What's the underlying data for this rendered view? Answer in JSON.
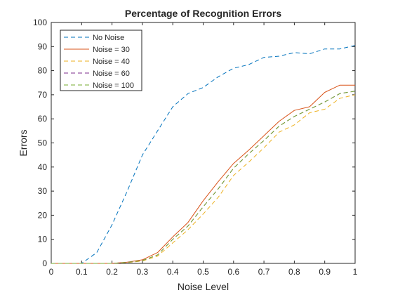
{
  "chart_data": {
    "type": "line",
    "title": "Percentage of Recognition Errors",
    "xlabel": "Noise Level",
    "ylabel": "Errors",
    "xlim": [
      0,
      1
    ],
    "ylim": [
      0,
      100
    ],
    "grid": false,
    "legend_position": "top-left",
    "x_ticks": [
      0,
      0.1,
      0.2,
      0.3,
      0.4,
      0.5,
      0.6,
      0.7,
      0.8,
      0.9,
      1
    ],
    "x_tick_labels": [
      "0",
      "0.1",
      "0.2",
      "0.3",
      "0.4",
      "0.5",
      "0.6",
      "0.7",
      "0.8",
      "0.9",
      "1"
    ],
    "y_ticks": [
      0,
      10,
      20,
      30,
      40,
      50,
      60,
      70,
      80,
      90,
      100
    ],
    "y_tick_labels": [
      "0",
      "10",
      "20",
      "30",
      "40",
      "50",
      "60",
      "70",
      "80",
      "90",
      "100"
    ],
    "x": [
      0,
      0.05,
      0.1,
      0.15,
      0.2,
      0.25,
      0.3,
      0.35,
      0.4,
      0.45,
      0.5,
      0.55,
      0.6,
      0.65,
      0.7,
      0.75,
      0.8,
      0.85,
      0.9,
      0.95,
      1
    ],
    "series": [
      {
        "name": "No Noise",
        "color": "#0072BD",
        "dash": "dashed",
        "values": [
          0,
          0,
          0,
          4.5,
          16,
          30,
          45,
          55,
          65,
          70.5,
          73,
          77.5,
          81,
          82.5,
          85.5,
          86,
          87.5,
          87,
          89,
          89,
          90.5
        ]
      },
      {
        "name": "Noise = 30",
        "color": "#D95319",
        "dash": "solid",
        "values": [
          0,
          0,
          0,
          0,
          0,
          0.5,
          1.5,
          4.5,
          11,
          17,
          26,
          34,
          41.5,
          47,
          53,
          59,
          63.5,
          65,
          71,
          74,
          74
        ]
      },
      {
        "name": "Noise = 40",
        "color": "#EDB120",
        "dash": "dashed",
        "values": [
          0,
          0,
          0,
          0,
          0,
          0.3,
          1,
          3,
          8.5,
          14,
          20.5,
          27.5,
          36.5,
          42,
          48,
          54.5,
          57.5,
          62.5,
          64,
          68.5,
          70
        ]
      },
      {
        "name": "Noise = 60",
        "color": "#7E2F8E",
        "dash": "dashed",
        "values": [
          0,
          0,
          0,
          0,
          0,
          0.4,
          1.2,
          3.5,
          10,
          15.5,
          23.5,
          31,
          39.5,
          45.5,
          51,
          57,
          61,
          64,
          67,
          70.5,
          71.5
        ]
      },
      {
        "name": "Noise = 100",
        "color": "#77AC30",
        "dash": "dashed",
        "values": [
          0,
          0,
          0,
          0,
          0,
          0.4,
          1.2,
          3.5,
          10,
          15.5,
          23.5,
          31,
          39.5,
          45.5,
          51,
          57,
          61,
          64,
          67,
          70.5,
          71.5
        ]
      }
    ]
  }
}
